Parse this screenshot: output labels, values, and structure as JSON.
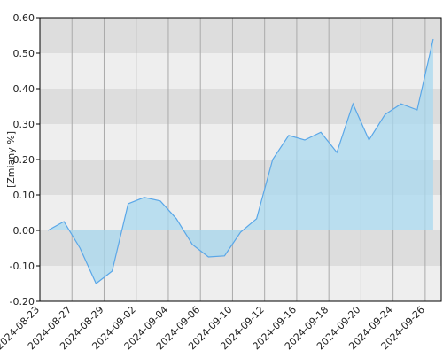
{
  "chart_data": {
    "type": "area",
    "y_label": "[Zmiany %]",
    "x_tick_labels": [
      "2024-08-23",
      "2024-08-27",
      "2024-08-29",
      "2024-09-02",
      "2024-09-04",
      "2024-09-06",
      "2024-09-10",
      "2024-09-12",
      "2024-09-16",
      "2024-09-18",
      "2024-09-20",
      "2024-09-24",
      "2024-09-26"
    ],
    "values": [
      0.0,
      0.025,
      -0.05,
      -0.15,
      -0.115,
      0.075,
      0.093,
      0.083,
      0.033,
      -0.04,
      -0.075,
      -0.072,
      -0.005,
      0.033,
      0.2,
      0.268,
      0.255,
      0.277,
      0.22,
      0.357,
      0.255,
      0.327,
      0.357,
      0.34,
      0.54
    ],
    "color": "#5aa7e8",
    "ylim": [
      -0.2,
      0.6
    ],
    "yticks": [
      {
        "value": -0.2,
        "label": "-0.20"
      },
      {
        "value": -0.1,
        "label": "-0.10"
      },
      {
        "value": 0,
        "label": "0.00"
      },
      {
        "value": 0.1,
        "label": "0.10"
      },
      {
        "value": 0.2,
        "label": "0.20"
      },
      {
        "value": 0.3,
        "label": "0.30"
      },
      {
        "value": 0.4,
        "label": "0.40"
      },
      {
        "value": 0.5,
        "label": "0.50"
      },
      {
        "value": 0.6,
        "label": "0.60"
      }
    ],
    "grid": true
  }
}
